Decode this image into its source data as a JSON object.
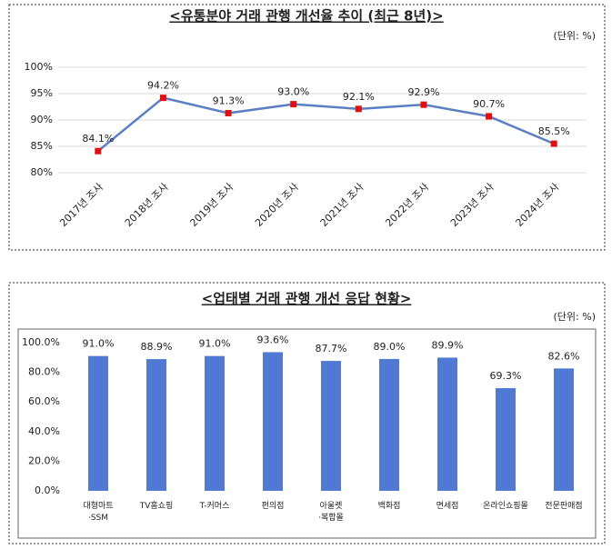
{
  "chart_data": [
    {
      "type": "line",
      "title": "<유통분야 거래 관행 개선율 추이 (최근 8년)>",
      "unit_label": "(단위: %)",
      "categories": [
        "2017년 조사",
        "2018년 조사",
        "2019년 조사",
        "2020년 조사",
        "2021년 조사",
        "2022년 조사",
        "2023년 조사",
        "2024년 조사"
      ],
      "values": [
        84.1,
        94.2,
        91.3,
        93.0,
        92.1,
        92.9,
        90.7,
        85.5
      ],
      "value_labels": [
        "84.1%",
        "94.2%",
        "91.3%",
        "93.0%",
        "92.1%",
        "92.9%",
        "90.7%",
        "85.5%"
      ],
      "color": "#5b7fc4",
      "marker_color": "#e01010",
      "ylim": [
        80,
        100
      ],
      "yticks": [
        {
          "value": 80,
          "label": "80%"
        },
        {
          "value": 85,
          "label": "85%"
        },
        {
          "value": 90,
          "label": "90%"
        },
        {
          "value": 95,
          "label": "95%"
        },
        {
          "value": 100,
          "label": "100%"
        }
      ],
      "grid": true
    },
    {
      "type": "bar",
      "title": "<업태별 거래 관행 개선 응답 현황>",
      "unit_label": "(단위: %)",
      "categories": [
        "대형마트\n·SSM",
        "TV홈쇼핑",
        "T-커머스",
        "편의점",
        "아울렛\n·복합몰",
        "백화점",
        "면세점",
        "온라인쇼핑몰",
        "전문판매점"
      ],
      "values": [
        91.0,
        88.9,
        91.0,
        93.6,
        87.7,
        89.0,
        89.9,
        69.3,
        82.6
      ],
      "value_labels": [
        "91.0%",
        "88.9%",
        "91.0%",
        "93.6%",
        "87.7%",
        "89.0%",
        "89.9%",
        "69.3%",
        "82.6%"
      ],
      "color": "#5079d4",
      "ylim": [
        0,
        100
      ],
      "yticks": [
        {
          "value": 0,
          "label": "0.0%"
        },
        {
          "value": 20,
          "label": "20.0%"
        },
        {
          "value": 40,
          "label": "40.0%"
        },
        {
          "value": 60,
          "label": "60.0%"
        },
        {
          "value": 80,
          "label": "80.0%"
        },
        {
          "value": 100,
          "label": "100.0%"
        }
      ],
      "grid": false
    }
  ]
}
